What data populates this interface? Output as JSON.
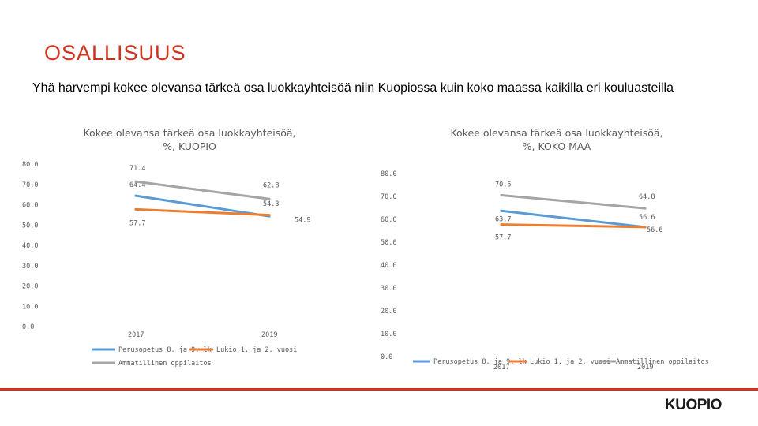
{
  "slide": {
    "title": "OSALLISUUS",
    "subtitle": "Yhä harvempi kokee olevansa tärkeä osa luokkayhteisöä niin Kuopiossa kuin koko maassa kaikilla eri kouluasteilla",
    "logo": "KUOPIO"
  },
  "colors": {
    "title": "#d0321e",
    "series1": "#5b9bd5",
    "series2": "#ed7d31",
    "series3": "#a5a5a5",
    "footer_line": "#d0321e"
  },
  "chart_data": [
    {
      "type": "line",
      "title_lines": [
        "Kokee olevansa tärkeä osa luokkayhteisöä,",
        "%, KUOPIO"
      ],
      "categories": [
        "2017",
        "2019"
      ],
      "yticks": [
        "80.0",
        "70.0",
        "60.0",
        "50.0",
        "40.0",
        "30.0",
        "20.0",
        "10.0",
        "0.0"
      ],
      "ylim": [
        0,
        80
      ],
      "series": [
        {
          "name": "Perusopetus 8. ja 9. lk",
          "values": [
            64.4,
            54.3
          ],
          "labels": [
            "64.4",
            "54.3"
          ]
        },
        {
          "name": "Lukio 1. ja 2. vuosi",
          "values": [
            57.7,
            54.9
          ],
          "labels": [
            "57.7",
            "54.9"
          ]
        },
        {
          "name": "Ammatillinen oppilaitos",
          "values": [
            71.4,
            62.8
          ],
          "labels": [
            "71.4",
            "62.8"
          ]
        }
      ],
      "legend": "bottom"
    },
    {
      "type": "line",
      "title_lines": [
        "Kokee olevansa tärkeä osa luokkayhteisöä,",
        "%, KOKO MAA"
      ],
      "categories": [
        "2017",
        "2019"
      ],
      "yticks": [
        "80.0",
        "70.0",
        "60.0",
        "50.0",
        "40.0",
        "30.0",
        "20.0",
        "10.0",
        "0.0"
      ],
      "ylim": [
        0,
        80
      ],
      "series": [
        {
          "name": "Perusopetus 8. ja 9. lk",
          "values": [
            63.7,
            56.6
          ],
          "labels": [
            "63.7",
            "56.6"
          ]
        },
        {
          "name": "Lukio 1. ja 2. vuosi",
          "values": [
            57.7,
            56.6
          ],
          "labels": [
            "57.7",
            "56.6"
          ]
        },
        {
          "name": "Ammatillinen oppilaitos",
          "values": [
            70.5,
            64.8
          ],
          "labels": [
            "70.5",
            "64.8"
          ]
        }
      ],
      "legend": "bottom"
    }
  ]
}
